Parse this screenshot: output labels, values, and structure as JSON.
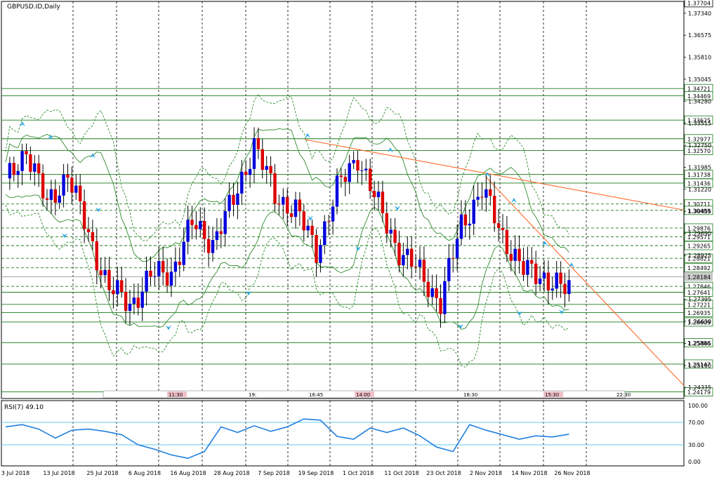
{
  "symbol_label": "GBPUSD.ID,Daily",
  "rsi_label": "RSI(7) 49.10",
  "chart_data": [
    {
      "type": "candlestick",
      "title": "GBPUSD.ID,Daily",
      "ylim": [
        1.2395,
        1.3775
      ],
      "y_tick_labels": [
        "1.37340",
        "1.36575",
        "1.35810",
        "1.35045",
        "1.34280",
        "1.33515",
        "1.32750",
        "1.31985",
        "1.31220",
        "1.30455",
        "1.29690",
        "1.28925",
        "1.28160",
        "1.27395",
        "1.26630",
        "1.25865",
        "1.25100",
        "1.24335"
      ],
      "x_tick_labels": [
        "3 Jul 2018",
        "13 Jul 2018",
        "25 Jul 2018",
        "6 Aug 2018",
        "16 Aug 2018",
        "28 Aug 2018",
        "7 Sep 2018",
        "19 Sep 2018",
        "1 Oct 2018",
        "11 Oct 2018",
        "23 Oct 2018",
        "2 Nov 2018",
        "14 Nov 2018",
        "26 Nov 2018"
      ],
      "close_points": [
        [
          0,
          1.314
        ],
        [
          5,
          1.3265
        ],
        [
          10,
          1.3065
        ],
        [
          15,
          1.318
        ],
        [
          20,
          1.296
        ],
        [
          25,
          1.278
        ],
        [
          30,
          1.272
        ],
        [
          35,
          1.282
        ],
        [
          40,
          1.2835
        ],
        [
          45,
          1.3
        ],
        [
          50,
          1.294
        ],
        [
          55,
          1.308
        ],
        [
          60,
          1.328
        ],
        [
          65,
          1.31
        ],
        [
          70,
          1.305
        ],
        [
          75,
          1.291
        ],
        [
          80,
          1.312
        ],
        [
          85,
          1.324
        ],
        [
          90,
          1.306
        ],
        [
          95,
          1.291
        ],
        [
          100,
          1.283
        ],
        [
          105,
          1.273
        ],
        [
          110,
          1.3
        ],
        [
          115,
          1.312
        ],
        [
          120,
          1.296
        ],
        [
          125,
          1.284
        ],
        [
          130,
          1.282
        ],
        [
          135,
          1.277
        ]
      ],
      "horizontal_levels": [
        "1.34721",
        "1.34469",
        "1.33625",
        "1.32977",
        "1.32570",
        "1.31738",
        "1.31436",
        "1.30711",
        "1.30489",
        "1.29876",
        "1.29571",
        "1.29265",
        "1.28821",
        "1.28492",
        "1.27846",
        "1.27641",
        "1.27221",
        "1.26935",
        "1.26609",
        "1.25886",
        "1.25147",
        "1.24179"
      ],
      "current_price": "1.28184",
      "price_top": "1.37704"
    },
    {
      "type": "line",
      "title": "RSI(7) 49.10",
      "ylim": [
        0,
        100
      ],
      "y_tick_labels": [
        "100.00",
        "70.00",
        "30.00",
        "0.00"
      ],
      "levels": [
        70,
        30
      ],
      "points": [
        [
          0,
          62
        ],
        [
          4,
          66
        ],
        [
          8,
          58
        ],
        [
          12,
          42
        ],
        [
          16,
          56
        ],
        [
          20,
          58
        ],
        [
          24,
          54
        ],
        [
          28,
          48
        ],
        [
          32,
          30
        ],
        [
          36,
          22
        ],
        [
          40,
          12
        ],
        [
          44,
          6
        ],
        [
          48,
          18
        ],
        [
          52,
          62
        ],
        [
          56,
          52
        ],
        [
          60,
          64
        ],
        [
          64,
          54
        ],
        [
          68,
          62
        ],
        [
          72,
          76
        ],
        [
          76,
          74
        ],
        [
          80,
          45
        ],
        [
          84,
          40
        ],
        [
          88,
          60
        ],
        [
          92,
          52
        ],
        [
          96,
          60
        ],
        [
          100,
          46
        ],
        [
          104,
          26
        ],
        [
          108,
          18
        ],
        [
          112,
          66
        ],
        [
          116,
          56
        ],
        [
          120,
          48
        ],
        [
          124,
          40
        ],
        [
          128,
          46
        ],
        [
          132,
          44
        ],
        [
          136,
          49
        ]
      ]
    }
  ],
  "time_labels": [
    "11:30",
    "19:",
    "16:45",
    "14:00",
    "18:30",
    "15:30",
    "22:30"
  ]
}
